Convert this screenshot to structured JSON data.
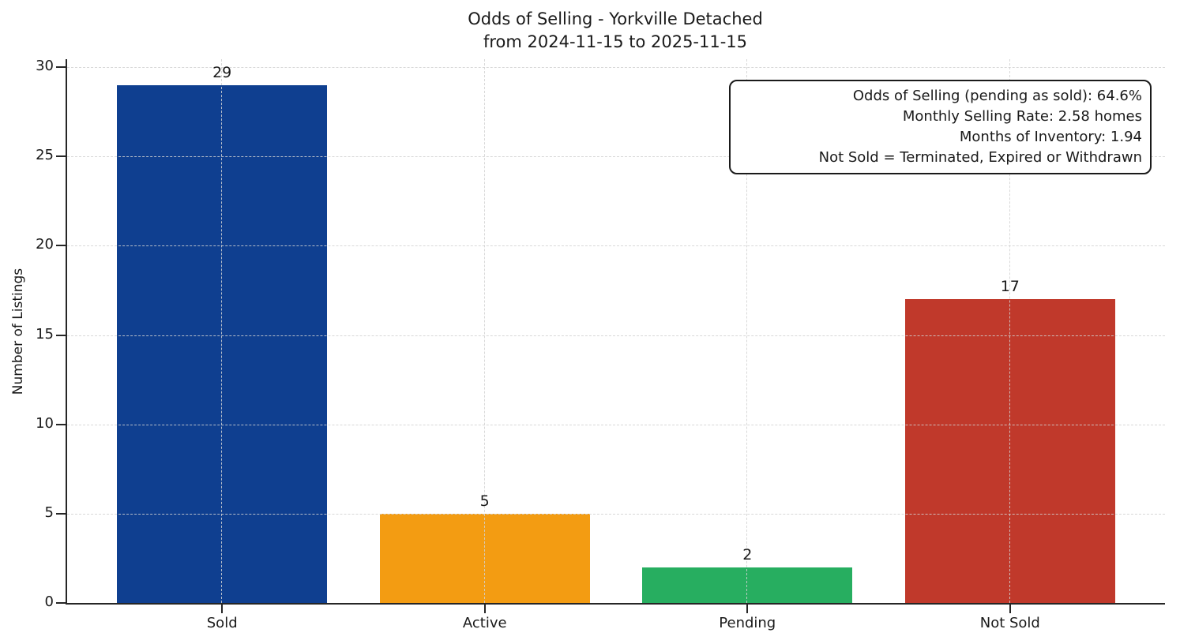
{
  "title": {
    "line1": "Odds of Selling - Yorkville Detached",
    "line2": "from 2024-11-15 to 2025-11-15"
  },
  "chart_data": {
    "type": "bar",
    "categories": [
      "Sold",
      "Active",
      "Pending",
      "Not Sold"
    ],
    "values": [
      29,
      5,
      2,
      17
    ],
    "value_labels": [
      "29",
      "5",
      "2",
      "17"
    ],
    "bar_colors": [
      "#0f3f90",
      "#f39c12",
      "#27ae60",
      "#c0392b"
    ],
    "title": "Odds of Selling - Yorkville Detached",
    "subtitle": "from 2024-11-15 to 2025-11-15",
    "xlabel": "",
    "ylabel": "Number of Listings",
    "yticks": [
      0,
      5,
      10,
      15,
      20,
      25,
      30
    ],
    "ylim": [
      0,
      30.45
    ],
    "xlim": [
      -0.59,
      3.59
    ],
    "bar_width": 0.8,
    "grid": "dashed both-axes, drawn above bars",
    "grid_color": "#d2d2d2",
    "axis_color": "#262626",
    "text_color": "#1a1a1a",
    "legend": "none",
    "annotation_lines": [
      "Odds of Selling (pending as sold): 64.6%",
      "Monthly Selling Rate: 2.58 homes",
      "Months of Inventory: 1.94",
      "Not Sold = Terminated, Expired or Withdrawn"
    ]
  }
}
